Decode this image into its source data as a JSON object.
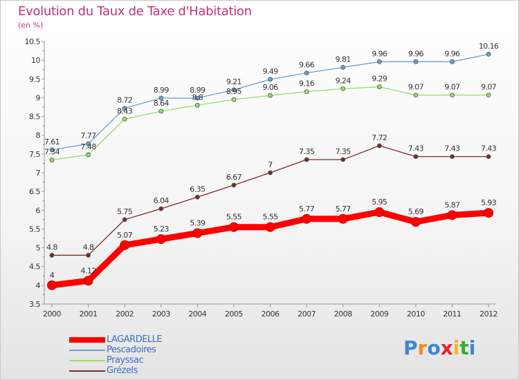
{
  "chart_data": {
    "type": "line",
    "title": "Evolution du Taux de Taxe d'Habitation",
    "subtitle": "(en %)",
    "xlabel": "",
    "ylabel": "",
    "ylim": [
      3.5,
      10.5
    ],
    "yticks": [
      "3.5",
      "4",
      "4.5",
      "5",
      "5.5",
      "6",
      "6.5",
      "7",
      "7.5",
      "8",
      "8.5",
      "9",
      "9.5",
      "10",
      "10.5"
    ],
    "x": [
      "2000",
      "2001",
      "2002",
      "2003",
      "2004",
      "2005",
      "2006",
      "2007",
      "2008",
      "2009",
      "2010",
      "2011",
      "2012"
    ],
    "grid": false,
    "legend": "bottom-left",
    "series": [
      {
        "name": "LAGARDELLE",
        "color": "#ff0000",
        "values": [
          4,
          4.12,
          5.07,
          5.23,
          5.39,
          5.55,
          5.55,
          5.77,
          5.77,
          5.95,
          5.69,
          5.87,
          5.93
        ],
        "labels": [
          "4",
          "4.12",
          "5.07",
          "5.23",
          "5.39",
          "5.55",
          "5.55",
          "5.77",
          "5.77",
          "5.95",
          "5.69",
          "5.87",
          "5.93"
        ]
      },
      {
        "name": "Pescadoires",
        "color": "#6a9fd4",
        "values": [
          7.61,
          7.77,
          8.72,
          8.99,
          8.99,
          9.21,
          9.49,
          9.66,
          9.81,
          9.96,
          9.96,
          9.96,
          10.16
        ],
        "labels": [
          "7.61",
          "7.77",
          "8.72",
          "8.99",
          "8.99",
          "9.21",
          "9.49",
          "9.66",
          "9.81",
          "9.96",
          "9.96",
          "9.96",
          "10.16"
        ]
      },
      {
        "name": "Prayssac",
        "color": "#99dd66",
        "values": [
          7.34,
          7.48,
          8.43,
          8.64,
          8.8,
          8.95,
          9.06,
          9.16,
          9.24,
          9.29,
          9.07,
          9.07,
          9.07
        ],
        "labels": [
          "7.34",
          "7.48",
          "8.43",
          "8.64",
          "8.8",
          "8.95",
          "9.06",
          "9.16",
          "9.24",
          "9.29",
          "9.07",
          "9.07",
          "9.07"
        ]
      },
      {
        "name": "Grézels",
        "color": "#7a2a2a",
        "values": [
          4.8,
          4.8,
          5.75,
          6.04,
          6.35,
          6.67,
          7,
          7.35,
          7.35,
          7.72,
          7.43,
          7.43,
          7.43
        ],
        "labels": [
          "4.8",
          "4.8",
          "5.75",
          "6.04",
          "6.35",
          "6.67",
          "7",
          "7.35",
          "7.35",
          "7.72",
          "7.43",
          "7.43",
          "7.43"
        ]
      }
    ]
  },
  "brand": {
    "text": "Proxiti"
  }
}
